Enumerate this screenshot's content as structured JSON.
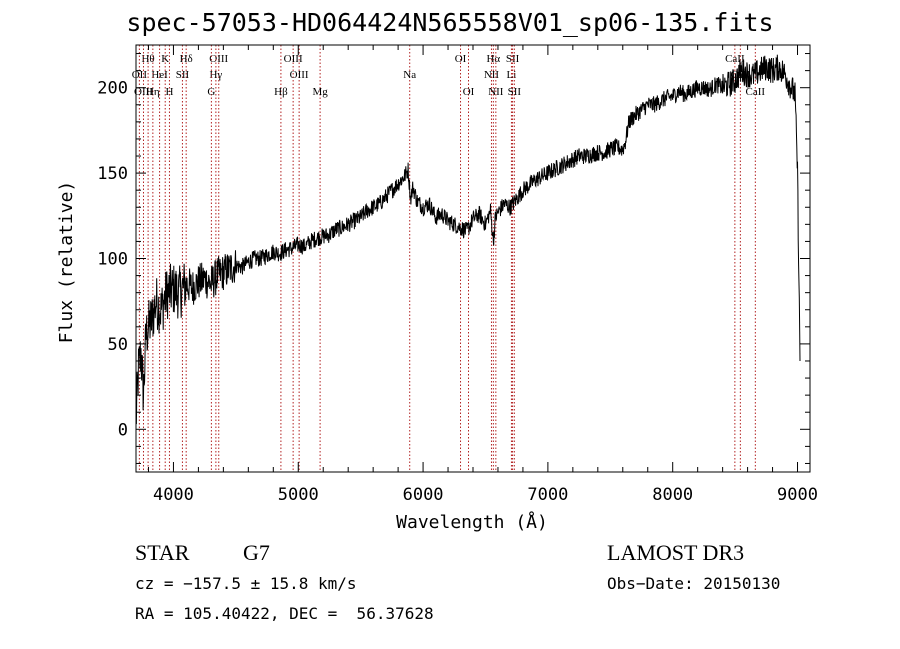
{
  "chart_data": {
    "type": "line",
    "title": "spec-57053-HD064424N565558V01_sp06-135.fits",
    "xlabel": "Wavelength (Å)",
    "ylabel": "Flux (relative)",
    "xlim": [
      3700,
      9100
    ],
    "ylim": [
      -25,
      225
    ],
    "x_ticks": [
      4000,
      5000,
      6000,
      7000,
      8000,
      9000
    ],
    "y_ticks": [
      0,
      50,
      100,
      150,
      200
    ],
    "grid": false,
    "series": [
      {
        "name": "spectrum",
        "x": [
          3700,
          3720,
          3740,
          3760,
          3780,
          3800,
          3830,
          3860,
          3900,
          3950,
          4000,
          4050,
          4100,
          4150,
          4200,
          4250,
          4300,
          4350,
          4400,
          4450,
          4500,
          4550,
          4600,
          4650,
          4700,
          4750,
          4800,
          4850,
          4900,
          4950,
          5000,
          5050,
          5100,
          5150,
          5200,
          5250,
          5300,
          5350,
          5400,
          5450,
          5500,
          5550,
          5600,
          5650,
          5700,
          5750,
          5800,
          5850,
          5880,
          5900,
          5920,
          5950,
          6000,
          6050,
          6100,
          6150,
          6200,
          6250,
          6300,
          6350,
          6400,
          6450,
          6500,
          6540,
          6563,
          6580,
          6600,
          6650,
          6700,
          6750,
          6800,
          6850,
          6900,
          6950,
          7000,
          7050,
          7100,
          7150,
          7200,
          7250,
          7300,
          7350,
          7400,
          7450,
          7500,
          7550,
          7600,
          7620,
          7650,
          7700,
          7750,
          7800,
          7850,
          7900,
          7950,
          8000,
          8050,
          8100,
          8150,
          8200,
          8250,
          8300,
          8350,
          8400,
          8450,
          8500,
          8550,
          8600,
          8650,
          8700,
          8750,
          8800,
          8850,
          8900,
          8950,
          8980,
          9000,
          9020
        ],
        "y": [
          5,
          35,
          45,
          20,
          55,
          60,
          65,
          75,
          70,
          80,
          82,
          80,
          85,
          83,
          86,
          88,
          85,
          90,
          92,
          94,
          96,
          95,
          98,
          100,
          100,
          102,
          104,
          103,
          105,
          106,
          108,
          107,
          110,
          112,
          113,
          114,
          117,
          118,
          120,
          122,
          124,
          128,
          130,
          132,
          136,
          140,
          144,
          148,
          152,
          135,
          142,
          134,
          130,
          132,
          124,
          126,
          122,
          120,
          118,
          116,
          123,
          126,
          120,
          128,
          110,
          124,
          127,
          132,
          130,
          135,
          140,
          143,
          146,
          148,
          150,
          152,
          154,
          156,
          158,
          160,
          160,
          161,
          162,
          162,
          164,
          165,
          164,
          168,
          180,
          184,
          187,
          190,
          190,
          192,
          194,
          195,
          198,
          196,
          198,
          200,
          200,
          199,
          202,
          200,
          202,
          204,
          210,
          208,
          207,
          210,
          212,
          210,
          212,
          208,
          200,
          196,
          150,
          40
        ]
      }
    ],
    "line_markers": [
      {
        "label": "Hθ",
        "x": 3797,
        "row": 1
      },
      {
        "label": "K",
        "x": 3934,
        "row": 1
      },
      {
        "label": "Hδ",
        "x": 4102,
        "row": 1
      },
      {
        "label": "OIII",
        "x": 4363,
        "row": 1
      },
      {
        "label": "OIII",
        "x": 4959,
        "row": 1
      },
      {
        "label": "OI",
        "x": 6300,
        "row": 1
      },
      {
        "label": "Hα",
        "x": 6563,
        "row": 1
      },
      {
        "label": "SII",
        "x": 6717,
        "row": 1
      },
      {
        "label": "CaII",
        "x": 8498,
        "row": 1
      },
      {
        "label": "OII",
        "x": 3727,
        "row": 2
      },
      {
        "label": "HeI",
        "x": 3889,
        "row": 2
      },
      {
        "label": "SII",
        "x": 4072,
        "row": 2
      },
      {
        "label": "Hγ",
        "x": 4340,
        "row": 2
      },
      {
        "label": "OIII",
        "x": 5007,
        "row": 2
      },
      {
        "label": "Na",
        "x": 5893,
        "row": 2
      },
      {
        "label": "NII",
        "x": 6548,
        "row": 2
      },
      {
        "label": "Li",
        "x": 6708,
        "row": 2
      },
      {
        "label": "CaII",
        "x": 8542,
        "row": 2
      },
      {
        "label": "OIII",
        "x": 3760,
        "row": 3
      },
      {
        "label": "Hη",
        "x": 3835,
        "row": 3
      },
      {
        "label": "H",
        "x": 3968,
        "row": 3
      },
      {
        "label": "G",
        "x": 4304,
        "row": 3
      },
      {
        "label": "Hβ",
        "x": 4861,
        "row": 3
      },
      {
        "label": "Mg",
        "x": 5175,
        "row": 3
      },
      {
        "label": "OI",
        "x": 6364,
        "row": 3
      },
      {
        "label": "NII",
        "x": 6583,
        "row": 3
      },
      {
        "label": "SII",
        "x": 6731,
        "row": 3
      },
      {
        "label": "CaII",
        "x": 8662,
        "row": 3
      }
    ]
  },
  "info": {
    "object_class": "STAR",
    "subclass": "G7",
    "survey": "LAMOST DR3",
    "cz": "cz = −157.5 ± 15.8 km/s",
    "obs_date": "Obs−Date: 20150130",
    "coords": "RA = 105.40422, DEC =  56.37628"
  },
  "colors": {
    "spectrum": "#000000",
    "marker_line": "#b22222",
    "axes": "#000000"
  }
}
